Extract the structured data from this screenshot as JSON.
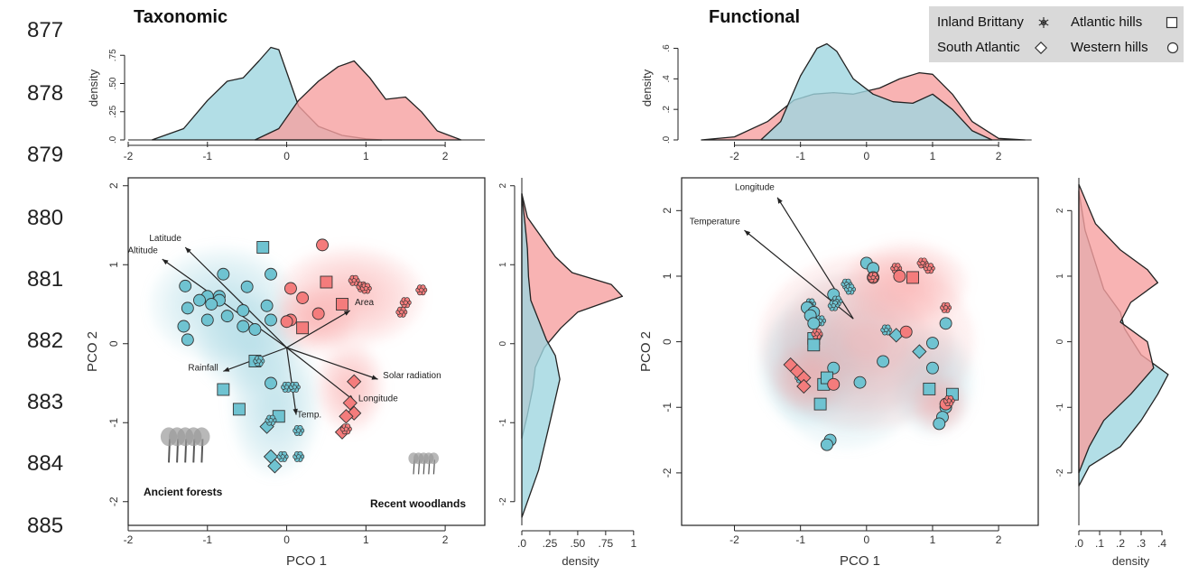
{
  "line_numbers": [
    "877",
    "878",
    "879",
    "880",
    "881",
    "882",
    "883",
    "884",
    "885"
  ],
  "legend": {
    "items": [
      {
        "label": "Inland Brittany",
        "symbol": "star"
      },
      {
        "label": "Atlantic hills",
        "symbol": "square"
      },
      {
        "label": "South Atlantic",
        "symbol": "diamond"
      },
      {
        "label": "Western hills",
        "symbol": "circle"
      }
    ]
  },
  "colors": {
    "ancient": "#6fc3d1",
    "recent": "#f47c7c",
    "ancient_fill": "#9fd6e0",
    "recent_fill": "#f6a0a0"
  },
  "chart_data": [
    {
      "type": "scatter",
      "title": "Taxonomic",
      "xlabel": "PCO 1",
      "ylabel": "PCO 2",
      "xlim": [
        -2,
        2.5
      ],
      "ylim": [
        -2.3,
        2.1
      ],
      "xticks": [
        "-2",
        "-1",
        "0",
        "1",
        "2"
      ],
      "yticks": [
        "-2",
        "-1",
        "0",
        "1",
        "2"
      ],
      "top_density": {
        "ylabel": "density",
        "yticks": [
          ".0",
          ".25",
          ".50",
          ".75"
        ],
        "xticks": [
          "-2",
          "-1",
          "0",
          "1",
          "2"
        ]
      },
      "side_density": {
        "xlabel": "density",
        "xticks": [
          ".0",
          ".25",
          ".50",
          ".75",
          "1"
        ],
        "yticks": [
          "-2",
          "-1",
          "0",
          "1",
          "2"
        ]
      },
      "annotations": [
        "Ancient forests",
        "Recent woodlands"
      ],
      "vectors": [
        {
          "label": "Latitude",
          "x": -1.28,
          "y": 1.22
        },
        {
          "label": "Altitude",
          "x": -1.57,
          "y": 1.07
        },
        {
          "label": "Area",
          "x": 0.8,
          "y": 0.42
        },
        {
          "label": "Rainfall",
          "x": -0.8,
          "y": -0.35
        },
        {
          "label": "Solar radiation",
          "x": 1.15,
          "y": -0.45
        },
        {
          "label": "Longitude",
          "x": 0.85,
          "y": -0.72
        },
        {
          "label": "Temp.",
          "x": 0.12,
          "y": -0.9
        }
      ],
      "series": [
        {
          "name": "Ancient forests",
          "points": [
            {
              "x": -0.3,
              "y": 1.22,
              "shape": "square"
            },
            {
              "x": -0.8,
              "y": 0.88,
              "shape": "circle"
            },
            {
              "x": -0.5,
              "y": 0.72,
              "shape": "circle"
            },
            {
              "x": -0.2,
              "y": 0.88,
              "shape": "circle"
            },
            {
              "x": -1.28,
              "y": 0.73,
              "shape": "circle"
            },
            {
              "x": -1.0,
              "y": 0.6,
              "shape": "circle"
            },
            {
              "x": -0.85,
              "y": 0.6,
              "shape": "circle"
            },
            {
              "x": -1.1,
              "y": 0.55,
              "shape": "circle"
            },
            {
              "x": -0.85,
              "y": 0.55,
              "shape": "circle"
            },
            {
              "x": -0.95,
              "y": 0.5,
              "shape": "circle"
            },
            {
              "x": -1.25,
              "y": 0.45,
              "shape": "circle"
            },
            {
              "x": -0.55,
              "y": 0.42,
              "shape": "circle"
            },
            {
              "x": -0.25,
              "y": 0.48,
              "shape": "circle"
            },
            {
              "x": -0.75,
              "y": 0.35,
              "shape": "circle"
            },
            {
              "x": -1.0,
              "y": 0.3,
              "shape": "circle"
            },
            {
              "x": -0.55,
              "y": 0.22,
              "shape": "circle"
            },
            {
              "x": -0.4,
              "y": 0.18,
              "shape": "circle"
            },
            {
              "x": -1.3,
              "y": 0.22,
              "shape": "circle"
            },
            {
              "x": -0.2,
              "y": 0.3,
              "shape": "circle"
            },
            {
              "x": -1.25,
              "y": 0.05,
              "shape": "circle"
            },
            {
              "x": -0.4,
              "y": -0.22,
              "shape": "square"
            },
            {
              "x": -0.35,
              "y": -0.22,
              "shape": "star"
            },
            {
              "x": -0.2,
              "y": -0.5,
              "shape": "circle"
            },
            {
              "x": -0.8,
              "y": -0.58,
              "shape": "square"
            },
            {
              "x": -0.6,
              "y": -0.83,
              "shape": "square"
            },
            {
              "x": -0.1,
              "y": -0.92,
              "shape": "square"
            },
            {
              "x": -0.25,
              "y": -1.05,
              "shape": "diamond"
            },
            {
              "x": -0.2,
              "y": -0.97,
              "shape": "star"
            },
            {
              "x": 0.0,
              "y": -0.55,
              "shape": "star"
            },
            {
              "x": 0.1,
              "y": -0.55,
              "shape": "star"
            },
            {
              "x": 0.15,
              "y": -1.1,
              "shape": "star"
            },
            {
              "x": -0.2,
              "y": -1.43,
              "shape": "diamond"
            },
            {
              "x": -0.15,
              "y": -1.55,
              "shape": "diamond"
            },
            {
              "x": -0.05,
              "y": -1.43,
              "shape": "star"
            },
            {
              "x": 0.15,
              "y": -1.43,
              "shape": "star"
            }
          ]
        },
        {
          "name": "Recent woodlands",
          "points": [
            {
              "x": 0.45,
              "y": 1.25,
              "shape": "circle"
            },
            {
              "x": 0.5,
              "y": 0.78,
              "shape": "square"
            },
            {
              "x": 0.85,
              "y": 0.8,
              "shape": "star"
            },
            {
              "x": 0.95,
              "y": 0.72,
              "shape": "star"
            },
            {
              "x": 1.0,
              "y": 0.7,
              "shape": "star"
            },
            {
              "x": 1.7,
              "y": 0.68,
              "shape": "star"
            },
            {
              "x": 0.7,
              "y": 0.5,
              "shape": "square"
            },
            {
              "x": 1.5,
              "y": 0.52,
              "shape": "star"
            },
            {
              "x": 1.45,
              "y": 0.4,
              "shape": "star"
            },
            {
              "x": 0.05,
              "y": 0.7,
              "shape": "circle"
            },
            {
              "x": 0.2,
              "y": 0.58,
              "shape": "circle"
            },
            {
              "x": 0.4,
              "y": 0.38,
              "shape": "circle"
            },
            {
              "x": 0.2,
              "y": 0.2,
              "shape": "square"
            },
            {
              "x": 0.05,
              "y": 0.3,
              "shape": "circle"
            },
            {
              "x": -0.0,
              "y": 0.28,
              "shape": "circle"
            },
            {
              "x": 0.85,
              "y": -0.48,
              "shape": "diamond"
            },
            {
              "x": 0.8,
              "y": -0.75,
              "shape": "diamond"
            },
            {
              "x": 0.85,
              "y": -0.88,
              "shape": "diamond"
            },
            {
              "x": 0.75,
              "y": -0.92,
              "shape": "diamond"
            },
            {
              "x": 0.7,
              "y": -1.12,
              "shape": "diamond"
            },
            {
              "x": 0.75,
              "y": -1.08,
              "shape": "star"
            }
          ]
        }
      ]
    },
    {
      "type": "scatter",
      "title": "Functional",
      "xlabel": "PCO 1",
      "ylabel": "PCO 2",
      "xlim": [
        -2.8,
        2.6
      ],
      "ylim": [
        -2.8,
        2.5
      ],
      "xticks": [
        "-2",
        "-1",
        "0",
        "1",
        "2"
      ],
      "yticks": [
        "-2",
        "-1",
        "0",
        "1",
        "2"
      ],
      "top_density": {
        "ylabel": "density",
        "yticks": [
          ".0",
          ".2",
          ".4",
          ".6"
        ],
        "xticks": [
          "-2",
          "-1",
          "0",
          "1",
          "2"
        ]
      },
      "side_density": {
        "xlabel": "density",
        "xticks": [
          ".0",
          ".1",
          ".2",
          ".3",
          ".4"
        ],
        "yticks": [
          "-2",
          "-1",
          "0",
          "1",
          "2"
        ]
      },
      "vectors": [
        {
          "label": "Longitude",
          "x": -1.35,
          "y": 2.2
        },
        {
          "label": "Temperature",
          "x": -1.85,
          "y": 1.7
        }
      ],
      "series": [
        {
          "name": "Ancient forests",
          "points": [
            {
              "x": -0.5,
              "y": 0.72,
              "shape": "circle"
            },
            {
              "x": -0.3,
              "y": 0.88,
              "shape": "star"
            },
            {
              "x": -0.25,
              "y": 0.8,
              "shape": "star"
            },
            {
              "x": -0.45,
              "y": 0.62,
              "shape": "star"
            },
            {
              "x": -0.5,
              "y": 0.55,
              "shape": "star"
            },
            {
              "x": 0.0,
              "y": 1.2,
              "shape": "circle"
            },
            {
              "x": 0.1,
              "y": 1.12,
              "shape": "circle"
            },
            {
              "x": -0.85,
              "y": 0.58,
              "shape": "star"
            },
            {
              "x": -0.9,
              "y": 0.52,
              "shape": "circle"
            },
            {
              "x": -0.8,
              "y": 0.45,
              "shape": "circle"
            },
            {
              "x": -0.85,
              "y": 0.4,
              "shape": "circle"
            },
            {
              "x": -0.7,
              "y": 0.32,
              "shape": "star"
            },
            {
              "x": -0.8,
              "y": 0.28,
              "shape": "circle"
            },
            {
              "x": -0.75,
              "y": 0.1,
              "shape": "star"
            },
            {
              "x": -0.8,
              "y": 0.05,
              "shape": "square"
            },
            {
              "x": -0.8,
              "y": -0.05,
              "shape": "square"
            },
            {
              "x": 0.3,
              "y": 0.18,
              "shape": "star"
            },
            {
              "x": 0.45,
              "y": 0.1,
              "shape": "diamond"
            },
            {
              "x": 0.8,
              "y": -0.15,
              "shape": "diamond"
            },
            {
              "x": 1.2,
              "y": 0.28,
              "shape": "circle"
            },
            {
              "x": 1.0,
              "y": -0.02,
              "shape": "circle"
            },
            {
              "x": 0.25,
              "y": -0.3,
              "shape": "circle"
            },
            {
              "x": -0.5,
              "y": -0.4,
              "shape": "circle"
            },
            {
              "x": -0.1,
              "y": -0.62,
              "shape": "circle"
            },
            {
              "x": -0.65,
              "y": -0.65,
              "shape": "square"
            },
            {
              "x": -0.6,
              "y": -0.55,
              "shape": "square"
            },
            {
              "x": -1.0,
              "y": -0.55,
              "shape": "star"
            },
            {
              "x": -0.7,
              "y": -0.95,
              "shape": "square"
            },
            {
              "x": 1.0,
              "y": -0.4,
              "shape": "circle"
            },
            {
              "x": 0.95,
              "y": -0.72,
              "shape": "square"
            },
            {
              "x": 1.3,
              "y": -0.8,
              "shape": "square"
            },
            {
              "x": 1.2,
              "y": -1.0,
              "shape": "circle"
            },
            {
              "x": 1.15,
              "y": -1.15,
              "shape": "circle"
            },
            {
              "x": 1.1,
              "y": -1.25,
              "shape": "circle"
            },
            {
              "x": -0.55,
              "y": -1.5,
              "shape": "circle"
            },
            {
              "x": -0.6,
              "y": -1.57,
              "shape": "circle"
            }
          ]
        },
        {
          "name": "Recent woodlands",
          "points": [
            {
              "x": 0.1,
              "y": 0.98,
              "shape": "circle"
            },
            {
              "x": 0.1,
              "y": 0.98,
              "shape": "star"
            },
            {
              "x": 0.45,
              "y": 1.12,
              "shape": "star"
            },
            {
              "x": 0.5,
              "y": 1.0,
              "shape": "circle"
            },
            {
              "x": 0.7,
              "y": 0.98,
              "shape": "square"
            },
            {
              "x": 0.85,
              "y": 1.2,
              "shape": "star"
            },
            {
              "x": 0.95,
              "y": 1.12,
              "shape": "star"
            },
            {
              "x": 1.2,
              "y": 0.52,
              "shape": "star"
            },
            {
              "x": 0.6,
              "y": 0.15,
              "shape": "circle"
            },
            {
              "x": -0.75,
              "y": 0.12,
              "shape": "star"
            },
            {
              "x": -1.15,
              "y": -0.35,
              "shape": "diamond"
            },
            {
              "x": -1.05,
              "y": -0.45,
              "shape": "diamond"
            },
            {
              "x": -0.95,
              "y": -0.55,
              "shape": "diamond"
            },
            {
              "x": -0.95,
              "y": -0.68,
              "shape": "diamond"
            },
            {
              "x": -0.5,
              "y": -0.65,
              "shape": "circle"
            },
            {
              "x": 1.2,
              "y": -0.95,
              "shape": "circle"
            },
            {
              "x": 1.25,
              "y": -0.9,
              "shape": "star"
            }
          ]
        }
      ]
    }
  ]
}
